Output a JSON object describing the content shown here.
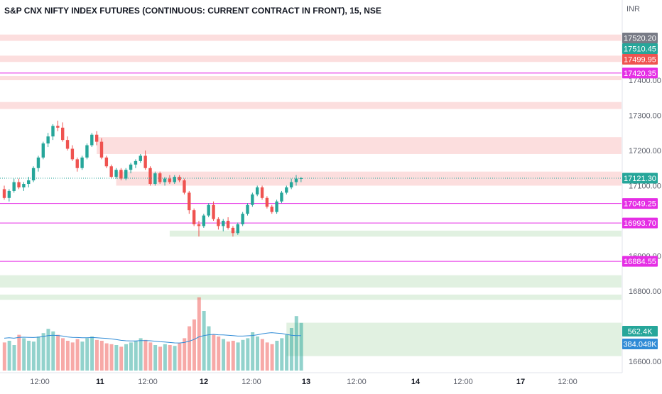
{
  "header": {
    "title": "S&P CNX NIFTY INDEX FUTURES (CONTINUOUS: CURRENT CONTRACT IN FRONT), 15, NSE"
  },
  "currency": "INR",
  "colors": {
    "up": "#26a69a",
    "down": "#ef5350",
    "zone_red": "#fbd8d8",
    "zone_green": "#dcefdc",
    "level_line": "#e52ee5",
    "ma_line": "#2f8bd6",
    "axis_text": "#5d606b",
    "grid": "#f0f3fa"
  },
  "chart_data": {
    "type": "candlestick",
    "timeframe": "15",
    "exchange": "NSE",
    "price_axis": {
      "min": 16600,
      "max": 17550,
      "ticks": [
        17400,
        17300,
        17200,
        17100,
        16900,
        16800,
        16600
      ]
    },
    "time_axis": {
      "ticks": [
        "12:00",
        "11",
        "12:00",
        "12",
        "12:00",
        "13",
        "12:00",
        "14",
        "12:00",
        "17",
        "12:00"
      ]
    },
    "price_labels": [
      {
        "value": 17520.2,
        "text": "17520.20",
        "style": "gray"
      },
      {
        "value": 17510.45,
        "text": "17510.45",
        "style": "green"
      },
      {
        "value": 17499.95,
        "text": "17499.95",
        "style": "red"
      },
      {
        "value": 17420.35,
        "text": "17420.35",
        "style": "magenta"
      },
      {
        "value": 17121.3,
        "text": "17121.30",
        "style": "green"
      },
      {
        "value": 17049.25,
        "text": "17049.25",
        "style": "magenta"
      },
      {
        "value": 16993.7,
        "text": "16993.70",
        "style": "magenta"
      },
      {
        "value": 16884.55,
        "text": "16884.55",
        "style": "magenta"
      }
    ],
    "volume_labels": [
      {
        "text": "562.4K",
        "style": "teal"
      },
      {
        "text": "384.048K",
        "style": "blue"
      }
    ],
    "candles": [
      [
        17090,
        17100,
        17060,
        17065
      ],
      [
        17065,
        17090,
        17055,
        17085
      ],
      [
        17085,
        17120,
        17080,
        17110
      ],
      [
        17110,
        17120,
        17090,
        17095
      ],
      [
        17095,
        17110,
        17085,
        17105
      ],
      [
        17105,
        17125,
        17095,
        17115
      ],
      [
        17115,
        17155,
        17110,
        17150
      ],
      [
        17150,
        17185,
        17140,
        17180
      ],
      [
        17180,
        17225,
        17175,
        17220
      ],
      [
        17220,
        17250,
        17210,
        17240
      ],
      [
        17240,
        17275,
        17230,
        17270
      ],
      [
        17270,
        17285,
        17255,
        17265
      ],
      [
        17265,
        17280,
        17225,
        17230
      ],
      [
        17230,
        17240,
        17200,
        17205
      ],
      [
        17205,
        17215,
        17170,
        17175
      ],
      [
        17175,
        17180,
        17140,
        17150
      ],
      [
        17150,
        17185,
        17145,
        17180
      ],
      [
        17180,
        17220,
        17175,
        17215
      ],
      [
        17215,
        17250,
        17210,
        17245
      ],
      [
        17245,
        17255,
        17215,
        17225
      ],
      [
        17225,
        17235,
        17175,
        17180
      ],
      [
        17180,
        17185,
        17150,
        17155
      ],
      [
        17155,
        17160,
        17120,
        17125
      ],
      [
        17125,
        17150,
        17120,
        17145
      ],
      [
        17145,
        17150,
        17115,
        17120
      ],
      [
        17120,
        17150,
        17115,
        17145
      ],
      [
        17145,
        17165,
        17135,
        17160
      ],
      [
        17160,
        17175,
        17150,
        17170
      ],
      [
        17170,
        17190,
        17165,
        17185
      ],
      [
        17185,
        17200,
        17145,
        17150
      ],
      [
        17150,
        17155,
        17100,
        17105
      ],
      [
        17105,
        17140,
        17100,
        17135
      ],
      [
        17135,
        17140,
        17105,
        17110
      ],
      [
        17110,
        17125,
        17100,
        17120
      ],
      [
        17120,
        17130,
        17105,
        17110
      ],
      [
        17110,
        17130,
        17105,
        17125
      ],
      [
        17125,
        17130,
        17110,
        17115
      ],
      [
        17115,
        17120,
        17075,
        17080
      ],
      [
        17080,
        17085,
        17020,
        17030
      ],
      [
        17030,
        17035,
        16985,
        16990
      ],
      [
        16990,
        17000,
        16955,
        16985
      ],
      [
        16985,
        17020,
        16980,
        17015
      ],
      [
        17015,
        17050,
        17010,
        17045
      ],
      [
        17045,
        17055,
        17000,
        17005
      ],
      [
        17005,
        17010,
        16975,
        16985
      ],
      [
        16985,
        17005,
        16970,
        17000
      ],
      [
        17000,
        17010,
        16975,
        16980
      ],
      [
        16980,
        16985,
        16955,
        16965
      ],
      [
        16965,
        16995,
        16960,
        16990
      ],
      [
        16990,
        17025,
        16985,
        17020
      ],
      [
        17020,
        17050,
        17015,
        17045
      ],
      [
        17045,
        17080,
        17040,
        17075
      ],
      [
        17075,
        17100,
        17070,
        17095
      ],
      [
        17095,
        17100,
        17060,
        17065
      ],
      [
        17065,
        17070,
        17035,
        17040
      ],
      [
        17040,
        17045,
        17020,
        17025
      ],
      [
        17025,
        17060,
        17020,
        17055
      ],
      [
        17055,
        17085,
        17050,
        17080
      ],
      [
        17080,
        17100,
        17075,
        17095
      ],
      [
        17095,
        17120,
        17090,
        17110
      ],
      [
        17110,
        17130,
        17100,
        17120
      ],
      [
        17120,
        17125,
        17110,
        17121.3
      ]
    ],
    "volumes": [
      330,
      350,
      300,
      420,
      380,
      350,
      340,
      400,
      440,
      490,
      460,
      420,
      380,
      350,
      330,
      370,
      340,
      380,
      400,
      360,
      350,
      320,
      310,
      300,
      280,
      310,
      330,
      350,
      380,
      360,
      330,
      300,
      280,
      310,
      300,
      290,
      320,
      380,
      520,
      600,
      860,
      700,
      520,
      420,
      400,
      370,
      340,
      350,
      330,
      360,
      380,
      450,
      400,
      370,
      330,
      310,
      350,
      380,
      420,
      500,
      640,
      560
    ],
    "volume_ma": [
      380,
      385,
      380,
      390,
      392,
      390,
      388,
      392,
      400,
      410,
      415,
      412,
      405,
      395,
      390,
      388,
      385,
      385,
      388,
      386,
      382,
      378,
      372,
      365,
      355,
      350,
      348,
      348,
      352,
      352,
      350,
      345,
      338,
      335,
      330,
      325,
      324,
      330,
      345,
      365,
      395,
      410,
      420,
      425,
      420,
      418,
      414,
      410,
      405,
      405,
      408,
      412,
      420,
      432,
      440,
      445,
      440,
      435,
      425,
      415,
      410,
      410
    ],
    "zones": [
      {
        "kind": "supply",
        "from": 17530,
        "to": 17512,
        "start": 0
      },
      {
        "kind": "supply",
        "from": 17470,
        "to": 17452,
        "start": 0
      },
      {
        "kind": "supply",
        "from": 17412,
        "to": 17400,
        "start": 0
      },
      {
        "kind": "supply",
        "from": 17338,
        "to": 17318,
        "start": 0
      },
      {
        "kind": "supply",
        "from": 17238,
        "to": 17190,
        "start": 19
      },
      {
        "kind": "supply",
        "from": 17140,
        "to": 17100,
        "start": 23
      },
      {
        "kind": "demand",
        "from": 16972,
        "to": 16955,
        "start": 34
      },
      {
        "kind": "demand",
        "from": 16845,
        "to": 16810,
        "start": 0
      },
      {
        "kind": "demand",
        "from": 16790,
        "to": 16775,
        "start": 0
      },
      {
        "kind": "demand",
        "from": 16710,
        "to": 16615,
        "start": 58
      }
    ],
    "levels": [
      17420.35,
      17049.25,
      16993.7,
      16884.55
    ]
  }
}
